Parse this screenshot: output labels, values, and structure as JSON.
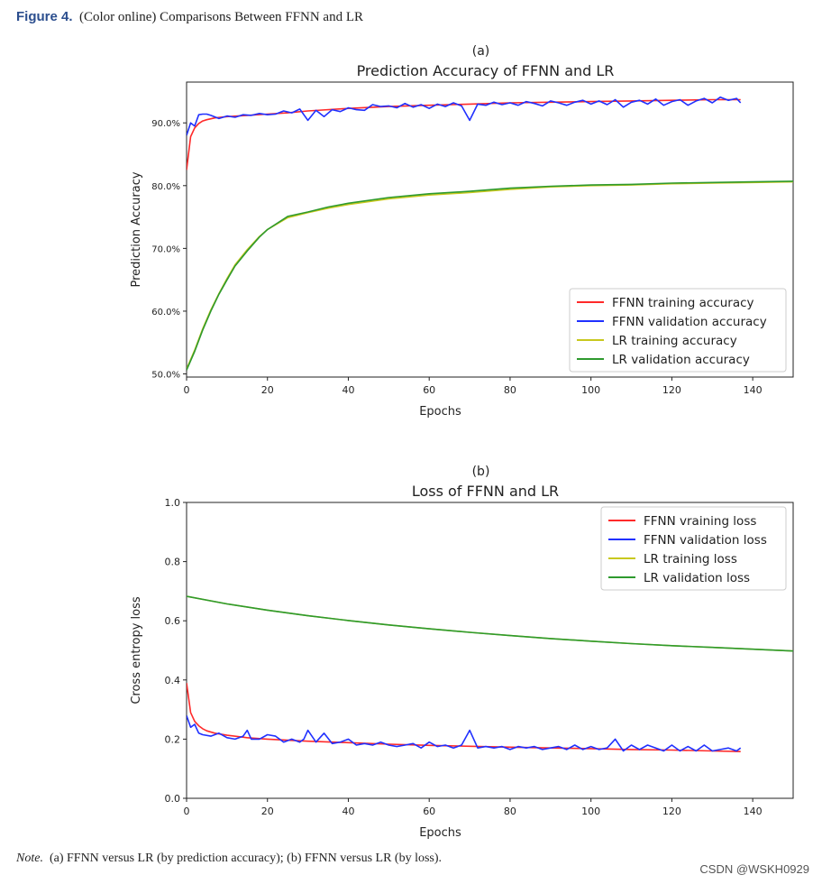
{
  "figure": {
    "label": "Figure 4.",
    "caption": "(Color online) Comparisons Between FFNN and LR",
    "note_label": "Note.",
    "note_text": "(a) FFNN versus LR (by prediction accuracy); (b) FFNN versus LR (by loss)."
  },
  "watermark": "CSDN @WSKH0929",
  "colors": {
    "ffnn_train": "#ff2a2a",
    "ffnn_val": "#2030ff",
    "lr_train": "#c8c81e",
    "lr_val": "#2e9a2e"
  },
  "chart_data": [
    {
      "type": "line",
      "panel": "(a)",
      "title": "Prediction Accuracy of FFNN and LR",
      "xlabel": "Epochs",
      "ylabel": "Prediction Accuracy",
      "xlim": [
        0,
        150
      ],
      "ylim": [
        49.5,
        96.5
      ],
      "xticks": [
        0,
        20,
        40,
        60,
        80,
        100,
        120,
        140
      ],
      "yticks": [
        50,
        60,
        70,
        80,
        90
      ],
      "ytick_labels": [
        "50.0%",
        "60.0%",
        "70.0%",
        "80.0%",
        "90.0%"
      ],
      "legend": "lower-right",
      "series": [
        {
          "name": "FFNN training accuracy",
          "color": "#ff2a2a",
          "x": [
            0,
            1,
            2,
            3,
            4,
            5,
            7,
            10,
            15,
            20,
            25,
            30,
            40,
            50,
            60,
            70,
            80,
            90,
            100,
            110,
            120,
            130,
            137
          ],
          "y": [
            82.5,
            87.8,
            89.2,
            89.9,
            90.3,
            90.5,
            90.8,
            91.0,
            91.2,
            91.4,
            91.6,
            91.9,
            92.3,
            92.6,
            92.8,
            93.0,
            93.2,
            93.3,
            93.4,
            93.5,
            93.6,
            93.7,
            93.7
          ]
        },
        {
          "name": "FFNN validation accuracy",
          "color": "#2030ff",
          "x": [
            0,
            1,
            2,
            3,
            4,
            5,
            6,
            8,
            10,
            12,
            14,
            16,
            18,
            20,
            22,
            24,
            26,
            28,
            30,
            32,
            34,
            36,
            38,
            40,
            42,
            44,
            46,
            48,
            50,
            52,
            54,
            56,
            58,
            60,
            62,
            64,
            66,
            68,
            70,
            72,
            74,
            76,
            78,
            80,
            82,
            84,
            86,
            88,
            90,
            92,
            94,
            96,
            98,
            100,
            102,
            104,
            106,
            108,
            110,
            112,
            114,
            116,
            118,
            120,
            122,
            124,
            126,
            128,
            130,
            132,
            134,
            136,
            137
          ],
          "y": [
            88.0,
            90.0,
            89.5,
            91.3,
            91.4,
            91.4,
            91.2,
            90.7,
            91.1,
            90.9,
            91.3,
            91.2,
            91.5,
            91.3,
            91.4,
            91.9,
            91.6,
            92.2,
            90.4,
            92.0,
            91.0,
            92.1,
            91.8,
            92.4,
            92.1,
            92.0,
            92.9,
            92.6,
            92.7,
            92.4,
            93.1,
            92.5,
            92.9,
            92.3,
            93.0,
            92.6,
            93.2,
            92.7,
            90.4,
            93.0,
            92.8,
            93.3,
            92.9,
            93.2,
            92.8,
            93.4,
            93.1,
            92.7,
            93.5,
            93.2,
            92.8,
            93.3,
            93.6,
            93.0,
            93.5,
            92.9,
            93.7,
            92.5,
            93.3,
            93.6,
            93.0,
            93.8,
            92.8,
            93.4,
            93.7,
            92.8,
            93.5,
            93.9,
            93.2,
            94.1,
            93.6,
            93.9,
            93.2
          ]
        },
        {
          "name": "LR training accuracy",
          "color": "#c8c81e",
          "x": [
            0,
            2,
            4,
            6,
            8,
            10,
            12,
            15,
            18,
            20,
            25,
            30,
            35,
            40,
            50,
            60,
            70,
            80,
            90,
            100,
            110,
            120,
            130,
            140,
            150
          ],
          "y": [
            50.8,
            53.8,
            57.2,
            60.2,
            62.8,
            65.2,
            67.4,
            69.8,
            71.9,
            73.0,
            74.9,
            75.7,
            76.4,
            77.0,
            77.9,
            78.5,
            78.9,
            79.4,
            79.8,
            80.0,
            80.1,
            80.3,
            80.4,
            80.5,
            80.6
          ]
        },
        {
          "name": "LR validation accuracy",
          "color": "#2e9a2e",
          "x": [
            0,
            2,
            4,
            6,
            8,
            10,
            12,
            15,
            18,
            20,
            25,
            30,
            35,
            40,
            50,
            60,
            70,
            80,
            90,
            100,
            110,
            120,
            130,
            140,
            150
          ],
          "y": [
            50.6,
            53.6,
            57.0,
            60.0,
            62.7,
            65.0,
            67.2,
            69.6,
            71.8,
            73.0,
            75.1,
            75.8,
            76.6,
            77.2,
            78.1,
            78.7,
            79.1,
            79.6,
            79.9,
            80.1,
            80.2,
            80.4,
            80.5,
            80.6,
            80.7
          ]
        }
      ]
    },
    {
      "type": "line",
      "panel": "(b)",
      "title": "Loss of FFNN and LR",
      "xlabel": "Epochs",
      "ylabel": "Cross entropy loss",
      "xlim": [
        0,
        150
      ],
      "ylim": [
        0.0,
        1.0
      ],
      "xticks": [
        0,
        20,
        40,
        60,
        80,
        100,
        120,
        140
      ],
      "yticks": [
        0.0,
        0.2,
        0.4,
        0.6,
        0.8,
        1.0
      ],
      "ytick_labels": [
        "0.0",
        "0.2",
        "0.4",
        "0.6",
        "0.8",
        "1.0"
      ],
      "legend": "upper-right",
      "series": [
        {
          "name": "FFNN vraining loss",
          "color": "#ff2a2a",
          "x": [
            0,
            1,
            2,
            3,
            4,
            5,
            7,
            10,
            15,
            20,
            30,
            40,
            50,
            60,
            70,
            80,
            90,
            100,
            110,
            120,
            130,
            137
          ],
          "y": [
            0.39,
            0.29,
            0.26,
            0.245,
            0.235,
            0.228,
            0.22,
            0.213,
            0.205,
            0.2,
            0.193,
            0.188,
            0.183,
            0.179,
            0.176,
            0.173,
            0.17,
            0.168,
            0.165,
            0.163,
            0.16,
            0.158
          ]
        },
        {
          "name": "FFNN validation loss",
          "color": "#2030ff",
          "x": [
            0,
            1,
            2,
            3,
            4,
            6,
            8,
            10,
            12,
            14,
            15,
            16,
            18,
            20,
            22,
            24,
            26,
            28,
            29,
            30,
            32,
            34,
            36,
            38,
            40,
            42,
            44,
            46,
            48,
            50,
            52,
            54,
            56,
            58,
            60,
            62,
            64,
            66,
            68,
            70,
            72,
            74,
            76,
            78,
            80,
            82,
            84,
            86,
            88,
            90,
            92,
            94,
            96,
            98,
            100,
            102,
            104,
            106,
            108,
            110,
            112,
            114,
            116,
            118,
            120,
            122,
            124,
            126,
            128,
            130,
            132,
            134,
            136,
            137
          ],
          "y": [
            0.28,
            0.24,
            0.25,
            0.22,
            0.215,
            0.21,
            0.22,
            0.205,
            0.2,
            0.21,
            0.23,
            0.2,
            0.2,
            0.215,
            0.21,
            0.19,
            0.2,
            0.19,
            0.2,
            0.23,
            0.19,
            0.22,
            0.185,
            0.19,
            0.2,
            0.18,
            0.185,
            0.18,
            0.19,
            0.18,
            0.175,
            0.18,
            0.185,
            0.17,
            0.19,
            0.175,
            0.18,
            0.17,
            0.18,
            0.23,
            0.17,
            0.175,
            0.17,
            0.175,
            0.165,
            0.175,
            0.17,
            0.175,
            0.165,
            0.17,
            0.175,
            0.165,
            0.18,
            0.165,
            0.175,
            0.165,
            0.17,
            0.2,
            0.16,
            0.18,
            0.165,
            0.18,
            0.17,
            0.16,
            0.18,
            0.16,
            0.175,
            0.16,
            0.18,
            0.16,
            0.165,
            0.17,
            0.16,
            0.17
          ]
        },
        {
          "name": "LR training loss",
          "color": "#c8c81e",
          "x": [
            0,
            10,
            20,
            30,
            40,
            50,
            60,
            70,
            80,
            90,
            100,
            110,
            120,
            130,
            140,
            150
          ],
          "y": [
            0.683,
            0.657,
            0.636,
            0.617,
            0.601,
            0.586,
            0.573,
            0.561,
            0.55,
            0.54,
            0.531,
            0.523,
            0.516,
            0.51,
            0.504,
            0.498
          ]
        },
        {
          "name": "LR validation loss",
          "color": "#2e9a2e",
          "x": [
            0,
            10,
            20,
            30,
            40,
            50,
            60,
            70,
            80,
            90,
            100,
            110,
            120,
            130,
            140,
            150
          ],
          "y": [
            0.683,
            0.657,
            0.636,
            0.617,
            0.601,
            0.586,
            0.573,
            0.561,
            0.55,
            0.54,
            0.531,
            0.523,
            0.516,
            0.51,
            0.504,
            0.498
          ]
        }
      ]
    }
  ]
}
